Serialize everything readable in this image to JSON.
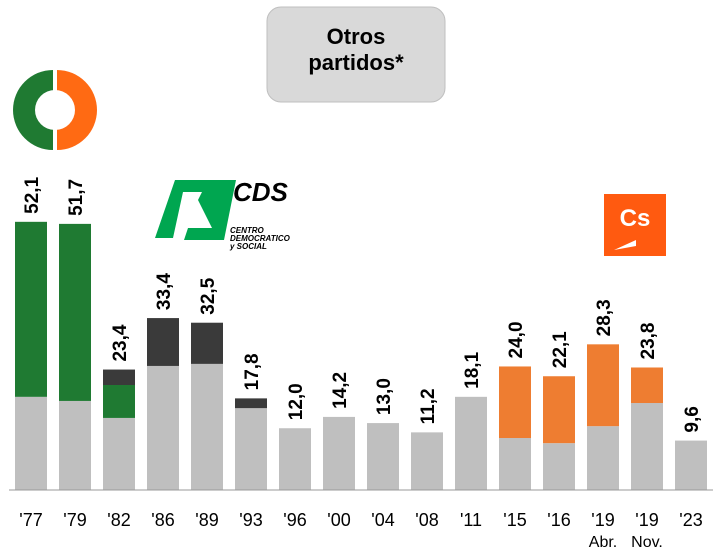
{
  "chart_data": {
    "type": "bar",
    "title": "Otros partidos*",
    "categories": [
      "'77",
      "'79",
      "'82",
      "'86",
      "'89",
      "'93",
      "'96",
      "'00",
      "'04",
      "'08",
      "'11",
      "'15",
      "'16",
      "'19",
      "'19",
      "'23"
    ],
    "sublabels": [
      null,
      null,
      null,
      null,
      null,
      null,
      null,
      null,
      null,
      null,
      null,
      null,
      null,
      "Abr.",
      "Nov.",
      null
    ],
    "values": [
      52.1,
      51.7,
      23.4,
      33.4,
      32.5,
      17.8,
      12.0,
      14.2,
      13.0,
      11.2,
      18.1,
      24.0,
      22.1,
      28.3,
      23.8,
      9.6
    ],
    "value_labels": [
      "52,1",
      "51,7",
      "23,4",
      "33,4",
      "32,5",
      "17,8",
      "12,0",
      "14,2",
      "13,0",
      "11,2",
      "18,1",
      "24,0",
      "22,1",
      "28,3",
      "23,8",
      "9,6"
    ],
    "series": [
      {
        "color": "#bfbfbf",
        "values": [
          18.1,
          17.3,
          14.0,
          24.1,
          24.5,
          15.9,
          12.0,
          14.2,
          13.0,
          11.2,
          18.1,
          10.1,
          9.1,
          12.4,
          16.9,
          9.6
        ]
      },
      {
        "color": "#1f7a32",
        "values": [
          34.0,
          34.4,
          6.4,
          null,
          null,
          null,
          null,
          null,
          null,
          null,
          null,
          null,
          null,
          null,
          null,
          null
        ]
      },
      {
        "color": "#3a3a3a",
        "values": [
          null,
          null,
          3.0,
          9.3,
          8.0,
          1.9,
          null,
          null,
          null,
          null,
          null,
          null,
          null,
          null,
          null,
          null
        ]
      },
      {
        "color": "#ee7d31",
        "values": [
          null,
          null,
          null,
          null,
          null,
          null,
          null,
          null,
          null,
          null,
          null,
          13.9,
          13.0,
          15.9,
          6.9,
          null
        ]
      }
    ],
    "ylim": [
      0,
      95
    ],
    "logos": {
      "cds": "CDS",
      "cds_line1": "CENTRO",
      "cds_line2": "DEMOCRATICO",
      "cds_line3": "y SOCIAL",
      "cs": "Cs"
    }
  }
}
